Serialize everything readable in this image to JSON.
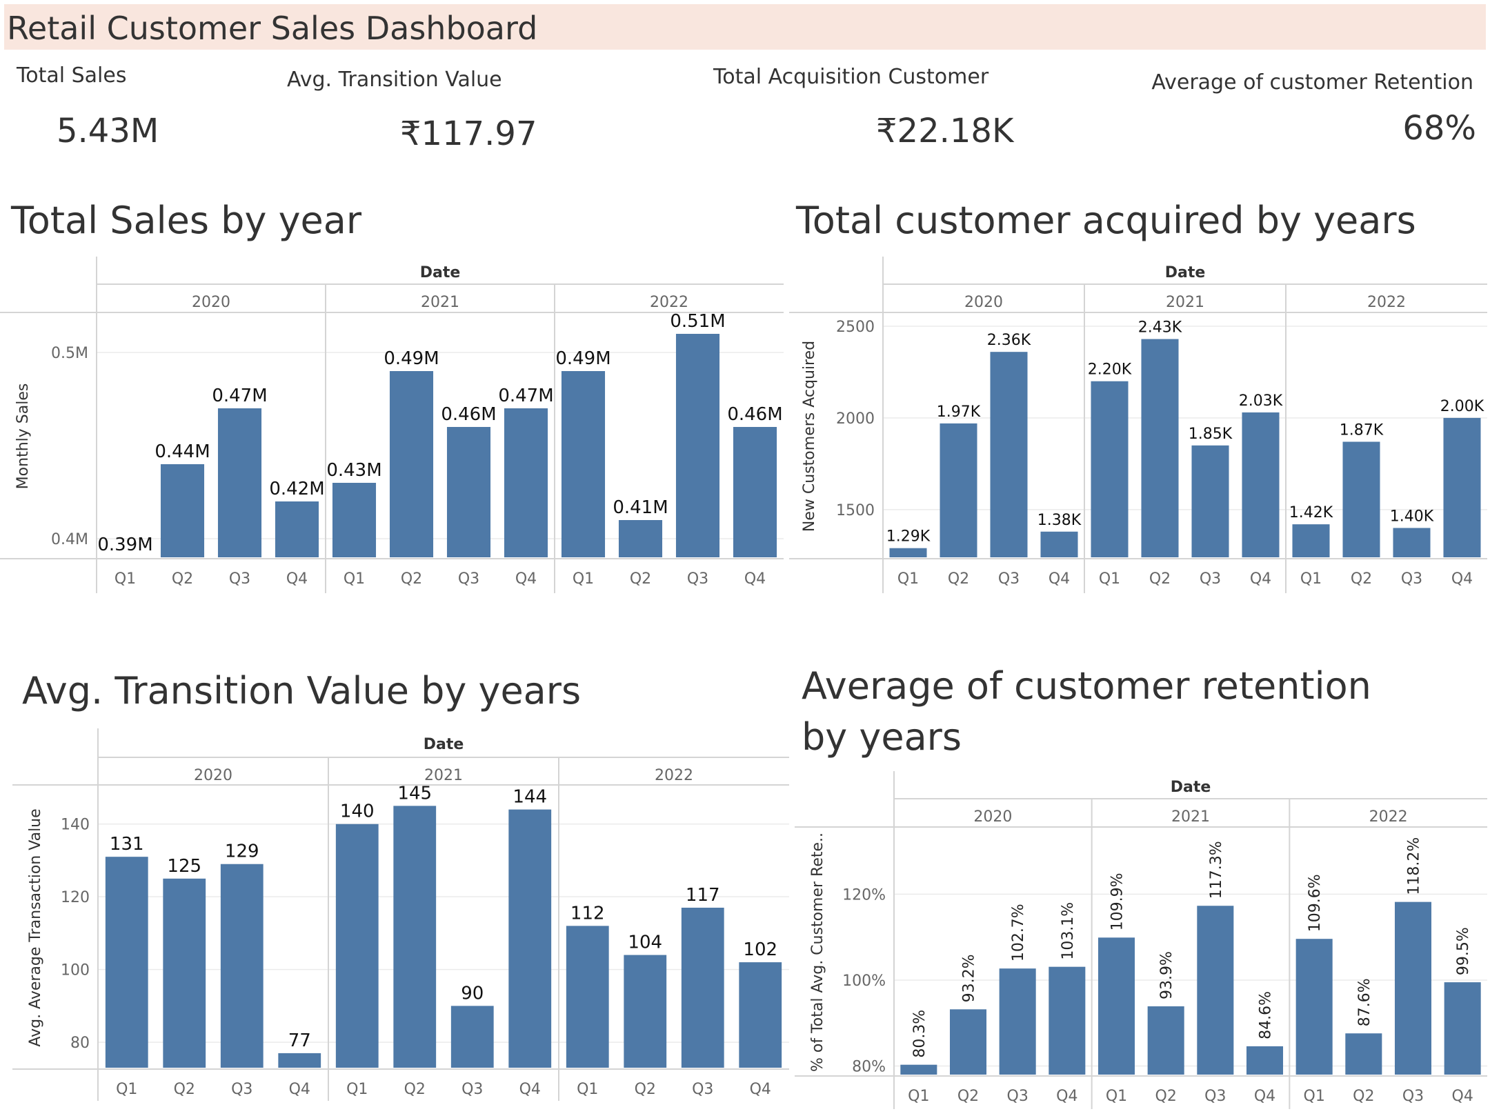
{
  "header": {
    "title": "Retail Customer Sales Dashboard"
  },
  "kpis": [
    {
      "label": "Total Sales",
      "value": "5.43M"
    },
    {
      "label": "Avg. Transition Value",
      "value": "₹117.97"
    },
    {
      "label": "Total Acquisition Customer",
      "value": "₹22.18K"
    },
    {
      "label": "Average of customer Retention",
      "value": "68%"
    }
  ],
  "colors": {
    "bar": "#4e79a7",
    "header_bg": "#f9e6de",
    "grid": "#ebebeb",
    "border": "#d4d4d4"
  },
  "chart_data": [
    {
      "type": "bar",
      "title": "Total Sales by year",
      "group_label": "Date",
      "years": [
        "2020",
        "2021",
        "2022"
      ],
      "categories": [
        "Q1",
        "Q2",
        "Q3",
        "Q4"
      ],
      "ylabel": "Monthly Sales",
      "ylim": [
        0.39,
        0.52
      ],
      "yticks": [
        0.4,
        0.5
      ],
      "ytick_labels": [
        "0.4M",
        "0.5M"
      ],
      "values": [
        [
          0.39,
          0.44,
          0.47,
          0.42
        ],
        [
          0.43,
          0.49,
          0.46,
          0.47
        ],
        [
          0.49,
          0.41,
          0.51,
          0.46
        ]
      ],
      "labels": [
        [
          "0.39M",
          "0.44M",
          "0.47M",
          "0.42M"
        ],
        [
          "0.43M",
          "0.49M",
          "0.46M",
          "0.47M"
        ],
        [
          "0.49M",
          "0.41M",
          "0.51M",
          "0.46M"
        ]
      ]
    },
    {
      "type": "bar",
      "title": "Total customer acquired by years",
      "group_label": "Date",
      "years": [
        "2020",
        "2021",
        "2022"
      ],
      "categories": [
        "Q1",
        "Q2",
        "Q3",
        "Q4"
      ],
      "ylabel": "New Customers Acquired",
      "ylim": [
        1240,
        2560
      ],
      "yticks": [
        1500,
        2000,
        2500
      ],
      "ytick_labels": [
        "1500",
        "2000",
        "2500"
      ],
      "values": [
        [
          1290,
          1970,
          2360,
          1380
        ],
        [
          2200,
          2430,
          1850,
          2030
        ],
        [
          1420,
          1870,
          1400,
          2000
        ]
      ],
      "labels": [
        [
          "1.29K",
          "1.97K",
          "2.36K",
          "1.38K"
        ],
        [
          "2.20K",
          "2.43K",
          "1.85K",
          "2.03K"
        ],
        [
          "1.42K",
          "1.87K",
          "1.40K",
          "2.00K"
        ]
      ]
    },
    {
      "type": "bar",
      "title": "Avg. Transition Value by years",
      "group_label": "Date",
      "years": [
        "2020",
        "2021",
        "2022"
      ],
      "categories": [
        "Q1",
        "Q2",
        "Q3",
        "Q4"
      ],
      "ylabel": "Avg. Average Transaction Value",
      "ylim": [
        73,
        150
      ],
      "yticks": [
        80,
        100,
        120,
        140
      ],
      "ytick_labels": [
        "80",
        "100",
        "120",
        "140"
      ],
      "values": [
        [
          131,
          125,
          129,
          77
        ],
        [
          140,
          145,
          90,
          144
        ],
        [
          112,
          104,
          117,
          102
        ]
      ],
      "labels": [
        [
          "131",
          "125",
          "129",
          "77"
        ],
        [
          "140",
          "145",
          "90",
          "144"
        ],
        [
          "112",
          "104",
          "117",
          "102"
        ]
      ]
    },
    {
      "type": "bar",
      "title": "Average of customer retention by years",
      "group_label": "Date",
      "years": [
        "2020",
        "2021",
        "2022"
      ],
      "categories": [
        "Q1",
        "Q2",
        "Q3",
        "Q4"
      ],
      "ylabel": "% of Total Avg. Customer Rete..",
      "ylim": [
        78,
        135
      ],
      "yticks": [
        80,
        100,
        120
      ],
      "ytick_labels": [
        "80%",
        "100%",
        "120%"
      ],
      "values": [
        [
          80.3,
          93.2,
          102.7,
          103.1
        ],
        [
          109.9,
          93.9,
          117.3,
          84.6
        ],
        [
          109.6,
          87.6,
          118.2,
          99.5
        ]
      ],
      "labels": [
        [
          "80.3%",
          "93.2%",
          "102.7%",
          "103.1%"
        ],
        [
          "109.9%",
          "93.9%",
          "117.3%",
          "84.6%"
        ],
        [
          "109.6%",
          "87.6%",
          "118.2%",
          "99.5%"
        ]
      ]
    }
  ]
}
